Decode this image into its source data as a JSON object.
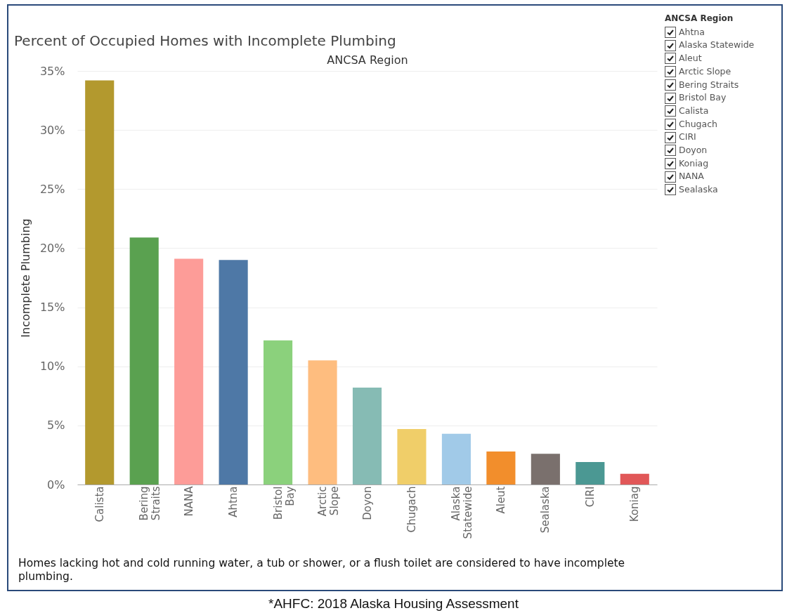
{
  "chart_data": {
    "type": "bar",
    "title": "Percent of Occupied Homes with Incomplete Plumbing",
    "xlabel": "ANCSA Region",
    "ylabel": "Incomplete Plumbing",
    "grid": "y",
    "categories": [
      "Calista",
      "Bering Straits",
      "NANA",
      "Ahtna",
      "Bristol Bay",
      "Arctic Slope",
      "Doyon",
      "Chugach",
      "Alaska Statewide",
      "Aleut",
      "Sealaska",
      "CIRI",
      "Koniag"
    ],
    "values": [
      34.2,
      20.9,
      19.1,
      19.0,
      12.2,
      10.5,
      8.2,
      4.7,
      4.3,
      2.8,
      2.6,
      1.9,
      0.9
    ],
    "colors": [
      "#b3992e",
      "#5aa150",
      "#fd9c98",
      "#4e78a6",
      "#8bd17c",
      "#febd7f",
      "#86bbb4",
      "#f0ce69",
      "#a1cae8",
      "#f28e2c",
      "#7a706d",
      "#4b9893",
      "#e15758"
    ],
    "ylim": [
      0,
      35
    ],
    "yticks": [
      {
        "value": 0,
        "label": "0%"
      },
      {
        "value": 5,
        "label": "5%"
      },
      {
        "value": 10,
        "label": "10%"
      },
      {
        "value": 15,
        "label": "15%"
      },
      {
        "value": 20,
        "label": "20%"
      },
      {
        "value": 25,
        "label": "25%"
      },
      {
        "value": 30,
        "label": "30%"
      },
      {
        "value": 35,
        "label": "35%"
      }
    ],
    "annotations": [
      "Homes lacking hot and cold running water, a tub or shower, or a flush toilet are considered to have incomplete plumbing.",
      "*AHFC: 2018 Alaska Housing Assessment",
      "ANCSA Region",
      "Ahtna",
      "Alaska Statewide",
      "Aleut",
      "Arctic Slope",
      "Bering Straits",
      "Bristol Bay",
      "Calista",
      "Chugach",
      "CIRI",
      "Doyon",
      "Koniag",
      "NANA",
      "Sealaska"
    ]
  }
}
